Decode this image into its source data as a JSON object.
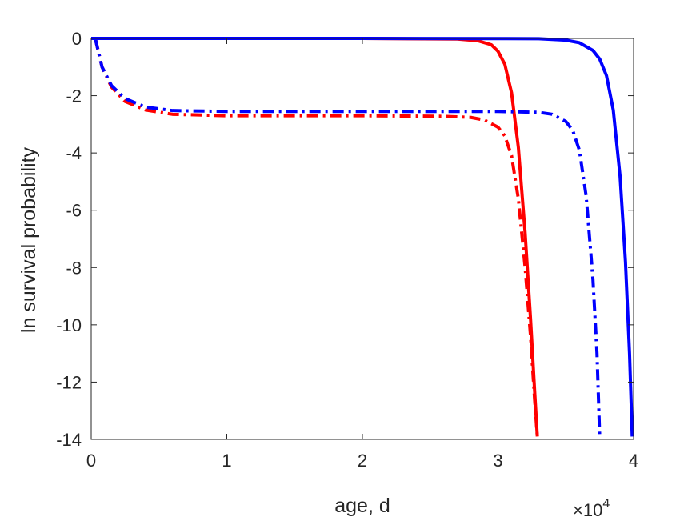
{
  "chart_data": {
    "type": "line",
    "title": "",
    "xlabel": "age, d",
    "ylabel": "ln survival probability",
    "x_exponent_label": {
      "base": "10",
      "exp": "4"
    },
    "xlim": [
      0,
      40000
    ],
    "ylim": [
      -14,
      0
    ],
    "x_ticks": [
      0,
      10000,
      20000,
      30000,
      40000
    ],
    "x_tick_labels": [
      "0",
      "1",
      "2",
      "3",
      "4"
    ],
    "y_ticks": [
      0,
      -2,
      -4,
      -6,
      -8,
      -10,
      -12,
      -14
    ],
    "y_tick_labels": [
      "0",
      "-2",
      "-4",
      "-6",
      "-8",
      "-10",
      "-12",
      "-14"
    ],
    "grid": false,
    "legend": null,
    "series": [
      {
        "color": "#ff0000",
        "style": "solid",
        "x": [
          0,
          20000,
          27000,
          28500,
          29500,
          30000,
          30500,
          31000,
          31500,
          32000,
          32400,
          32700,
          32900
        ],
        "y": [
          0,
          0,
          -0.02,
          -0.08,
          -0.22,
          -0.45,
          -0.9,
          -1.9,
          -3.8,
          -6.8,
          -9.8,
          -12.3,
          -13.9
        ]
      },
      {
        "color": "#ff0000",
        "style": "dashdot",
        "x": [
          300,
          800,
          1500,
          2500,
          4000,
          6000,
          10000,
          20000,
          26000,
          28000,
          29000,
          30000,
          30500,
          31000,
          31500,
          32000,
          32400,
          32700,
          32900
        ],
        "y": [
          0,
          -1.0,
          -1.7,
          -2.2,
          -2.5,
          -2.65,
          -2.7,
          -2.7,
          -2.72,
          -2.76,
          -2.85,
          -3.1,
          -3.4,
          -4.1,
          -5.6,
          -8.0,
          -10.4,
          -12.6,
          -13.9
        ]
      },
      {
        "color": "#0000ff",
        "style": "solid",
        "x": [
          0,
          20000,
          33000,
          35000,
          36000,
          37000,
          37500,
          38000,
          38500,
          39000,
          39400,
          39700,
          39900
        ],
        "y": [
          0,
          0,
          -0.01,
          -0.06,
          -0.15,
          -0.42,
          -0.72,
          -1.3,
          -2.5,
          -4.8,
          -7.8,
          -11.0,
          -13.9
        ]
      },
      {
        "color": "#0000ff",
        "style": "dashdot",
        "x": [
          300,
          800,
          1500,
          2500,
          4000,
          6000,
          10000,
          20000,
          30000,
          33000,
          34000,
          35000,
          35500,
          36000,
          36500,
          37000,
          37300,
          37500
        ],
        "y": [
          0,
          -1.0,
          -1.65,
          -2.1,
          -2.4,
          -2.52,
          -2.55,
          -2.55,
          -2.55,
          -2.58,
          -2.65,
          -2.9,
          -3.2,
          -3.9,
          -5.5,
          -8.4,
          -11.0,
          -13.9
        ]
      }
    ]
  }
}
